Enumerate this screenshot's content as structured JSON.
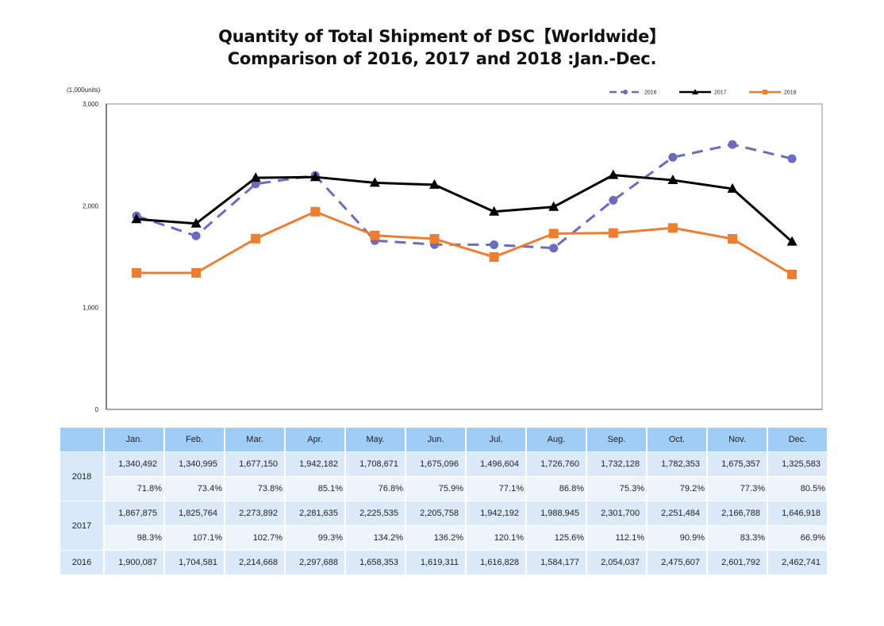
{
  "chart_data": {
    "type": "line",
    "title": "Quantity of Total Shipment of DSC【Worldwide】",
    "subtitle": "Comparison of 2016, 2017 and 2018 :Jan.-Dec.",
    "unit_label": "(1,000units)",
    "xlabel": "",
    "ylabel": "",
    "ylim": [
      0,
      3000
    ],
    "yticks": [
      0,
      1000,
      2000,
      3000
    ],
    "ytick_labels": [
      "0",
      "1,000",
      "2,000",
      "3,000"
    ],
    "grid": true,
    "legend_position": "top-right",
    "categories": [
      "Jan.",
      "Feb.",
      "Mar.",
      "Apr.",
      "May.",
      "Jun.",
      "Jul.",
      "Aug.",
      "Sep.",
      "Oct.",
      "Nov.",
      "Dec."
    ],
    "series": [
      {
        "name": "2016",
        "color": "#6b6bc0",
        "style": "dashed",
        "marker": "circle",
        "values": [
          1900.087,
          1704.581,
          2214.668,
          2297.688,
          1658.353,
          1619.311,
          1616.828,
          1584.177,
          2054.037,
          2475.607,
          2601.792,
          2462.741
        ]
      },
      {
        "name": "2017",
        "color": "#000000",
        "style": "solid",
        "marker": "triangle",
        "values": [
          1867.875,
          1825.764,
          2273.892,
          2281.635,
          2225.535,
          2205.758,
          1942.192,
          1988.945,
          2301.7,
          2251.484,
          2166.788,
          1646.918
        ]
      },
      {
        "name": "2018",
        "color": "#ed7d31",
        "style": "solid",
        "marker": "square",
        "values": [
          1340.492,
          1340.995,
          1677.15,
          1942.182,
          1708.671,
          1675.096,
          1496.604,
          1726.76,
          1732.128,
          1782.353,
          1675.357,
          1325.583
        ]
      }
    ]
  },
  "table": {
    "months": [
      "Jan.",
      "Feb.",
      "Mar.",
      "Apr.",
      "May.",
      "Jun.",
      "Jul.",
      "Aug.",
      "Sep.",
      "Oct.",
      "Nov.",
      "Dec."
    ],
    "rows": [
      {
        "year": "2018",
        "values": [
          "1,340,492",
          "1,340,995",
          "1,677,150",
          "1,942,182",
          "1,708,671",
          "1,675,096",
          "1,496,604",
          "1,726,760",
          "1,732,128",
          "1,782,353",
          "1,675,357",
          "1,325,583"
        ],
        "ratios": [
          "71.8%",
          "73.4%",
          "73.8%",
          "85.1%",
          "76.8%",
          "75.9%",
          "77.1%",
          "86.8%",
          "75.3%",
          "79.2%",
          "77.3%",
          "80.5%"
        ]
      },
      {
        "year": "2017",
        "values": [
          "1,867,875",
          "1,825,764",
          "2,273,892",
          "2,281,635",
          "2,225,535",
          "2,205,758",
          "1,942,192",
          "1,988,945",
          "2,301,700",
          "2,251,484",
          "2,166,788",
          "1,646,918"
        ],
        "ratios": [
          "98.3%",
          "107.1%",
          "102.7%",
          "99.3%",
          "134.2%",
          "136.2%",
          "120.1%",
          "125.6%",
          "112.1%",
          "90.9%",
          "83.3%",
          "66.9%"
        ]
      },
      {
        "year": "2016",
        "values": [
          "1,900,087",
          "1,704,581",
          "2,214,668",
          "2,297,688",
          "1,658,353",
          "1,619,311",
          "1,616,828",
          "1,584,177",
          "2,054,037",
          "2,475,607",
          "2,601,792",
          "2,462,741"
        ]
      }
    ]
  }
}
